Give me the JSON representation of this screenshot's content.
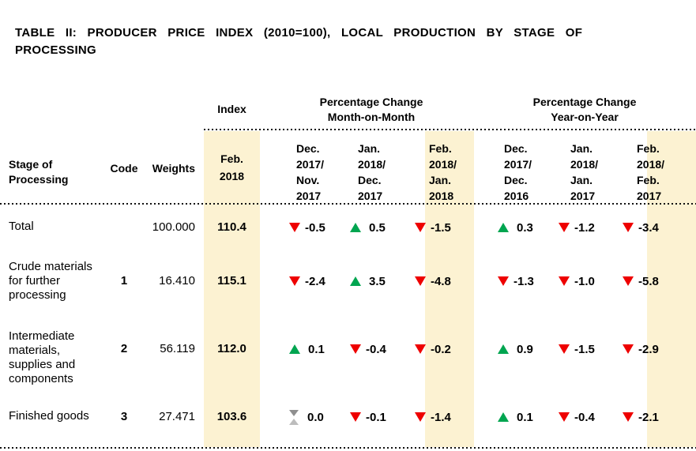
{
  "title": {
    "line1": "TABLE II: PRODUCER PRICE INDEX (2010=100), LOCAL PRODUCTION BY STAGE OF",
    "line2": "PROCESSING"
  },
  "header": {
    "stage": "Stage of\nProcessing",
    "code": "Code",
    "weights": "Weights",
    "index_group": "Index",
    "index_period": "Feb.\n2018",
    "mom_group": "Percentage Change\nMonth-on-Month",
    "yoy_group": "Percentage Change\nYear-on-Year",
    "mom_periods": [
      "Dec.\n2017/\nNov.\n2017",
      "Jan.\n2018/\nDec.\n2017",
      "Feb.\n2018/\nJan.\n2018"
    ],
    "yoy_periods": [
      "Dec.\n2017/\nDec.\n2016",
      "Jan.\n2018/\nJan.\n2017",
      "Feb.\n2018/\nFeb.\n2017"
    ]
  },
  "rows": [
    {
      "label": "Total",
      "code": "",
      "weight": "100.000",
      "index": "110.4",
      "mom": [
        {
          "dir": "down",
          "value": "-0.5"
        },
        {
          "dir": "up",
          "value": "0.5"
        },
        {
          "dir": "down",
          "value": "-1.5"
        }
      ],
      "yoy": [
        {
          "dir": "up",
          "value": "0.3"
        },
        {
          "dir": "down",
          "value": "-1.2"
        },
        {
          "dir": "down",
          "value": "-3.4"
        }
      ]
    },
    {
      "label": "Crude materials\nfor further\nprocessing",
      "code": "1",
      "weight": "16.410",
      "index": "115.1",
      "mom": [
        {
          "dir": "down",
          "value": "-2.4"
        },
        {
          "dir": "up",
          "value": "3.5"
        },
        {
          "dir": "down",
          "value": "-4.8"
        }
      ],
      "yoy": [
        {
          "dir": "down",
          "value": "-1.3"
        },
        {
          "dir": "down",
          "value": "-1.0"
        },
        {
          "dir": "down",
          "value": "-5.8"
        }
      ]
    },
    {
      "label": "Intermediate\nmaterials,\nsupplies and\ncomponents",
      "code": "2",
      "weight": "56.119",
      "index": "112.0",
      "mom": [
        {
          "dir": "up",
          "value": "0.1"
        },
        {
          "dir": "down",
          "value": "-0.4"
        },
        {
          "dir": "down",
          "value": "-0.2"
        }
      ],
      "yoy": [
        {
          "dir": "up",
          "value": "0.9"
        },
        {
          "dir": "down",
          "value": "-1.5"
        },
        {
          "dir": "down",
          "value": "-2.9"
        }
      ]
    },
    {
      "label": "Finished goods",
      "code": "3",
      "weight": "27.471",
      "index": "103.6",
      "mom": [
        {
          "dir": "flat",
          "value": "0.0"
        },
        {
          "dir": "down",
          "value": "-0.1"
        },
        {
          "dir": "down",
          "value": "-1.4"
        }
      ],
      "yoy": [
        {
          "dir": "up",
          "value": "0.1"
        },
        {
          "dir": "down",
          "value": "-0.4"
        },
        {
          "dir": "down",
          "value": "-2.1"
        }
      ]
    }
  ],
  "colors": {
    "highlight": "#FCF2D2",
    "up": "#00A550",
    "down": "#EE0000",
    "flatTop": "#8F8F8F",
    "flatBottom": "#BDBDBD"
  }
}
